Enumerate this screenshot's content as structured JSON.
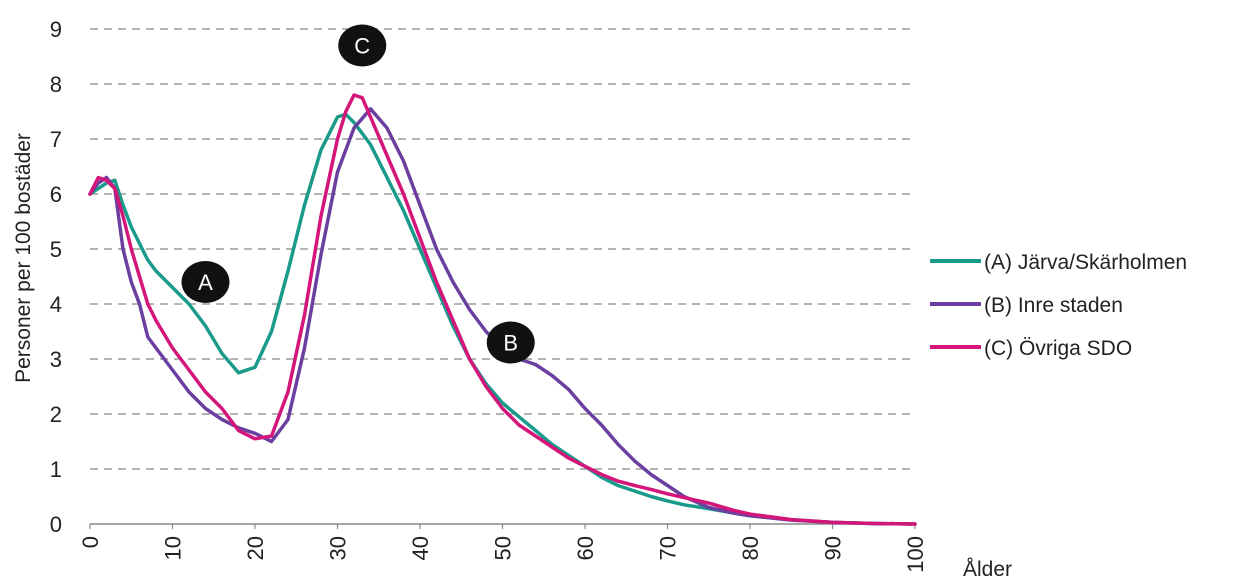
{
  "chart_data": {
    "type": "line",
    "xlabel": "Ålder",
    "ylabel": "Personer per 100 bostäder",
    "xlim": [
      0,
      100
    ],
    "ylim": [
      0,
      9
    ],
    "x_ticks": [
      0,
      10,
      20,
      30,
      40,
      50,
      60,
      70,
      80,
      90,
      100
    ],
    "y_ticks": [
      0,
      1,
      2,
      3,
      4,
      5,
      6,
      7,
      8,
      9
    ],
    "grid": true,
    "legend_position": "right",
    "series": [
      {
        "name": "(A) Järva/Skärholmen",
        "color": "#1a9a8a",
        "points": [
          [
            0,
            6.0
          ],
          [
            1,
            6.1
          ],
          [
            2,
            6.2
          ],
          [
            3,
            6.25
          ],
          [
            4,
            5.8
          ],
          [
            5,
            5.4
          ],
          [
            6,
            5.1
          ],
          [
            7,
            4.8
          ],
          [
            8,
            4.6
          ],
          [
            10,
            4.3
          ],
          [
            12,
            4.0
          ],
          [
            14,
            3.6
          ],
          [
            16,
            3.1
          ],
          [
            18,
            2.75
          ],
          [
            20,
            2.85
          ],
          [
            22,
            3.5
          ],
          [
            24,
            4.6
          ],
          [
            26,
            5.8
          ],
          [
            28,
            6.8
          ],
          [
            30,
            7.4
          ],
          [
            31,
            7.45
          ],
          [
            32,
            7.3
          ],
          [
            34,
            6.9
          ],
          [
            36,
            6.3
          ],
          [
            38,
            5.7
          ],
          [
            40,
            5.0
          ],
          [
            42,
            4.3
          ],
          [
            44,
            3.6
          ],
          [
            46,
            3.0
          ],
          [
            48,
            2.55
          ],
          [
            50,
            2.2
          ],
          [
            52,
            1.95
          ],
          [
            54,
            1.7
          ],
          [
            56,
            1.45
          ],
          [
            58,
            1.25
          ],
          [
            60,
            1.05
          ],
          [
            62,
            0.85
          ],
          [
            64,
            0.7
          ],
          [
            66,
            0.6
          ],
          [
            68,
            0.5
          ],
          [
            70,
            0.42
          ],
          [
            72,
            0.35
          ],
          [
            75,
            0.28
          ],
          [
            78,
            0.2
          ],
          [
            80,
            0.15
          ],
          [
            85,
            0.08
          ],
          [
            90,
            0.03
          ],
          [
            95,
            0.01
          ],
          [
            100,
            0.0
          ]
        ]
      },
      {
        "name": "(B) Inre staden",
        "color": "#6b3fa0",
        "points": [
          [
            0,
            6.0
          ],
          [
            1,
            6.2
          ],
          [
            2,
            6.3
          ],
          [
            3,
            6.1
          ],
          [
            4,
            5.0
          ],
          [
            5,
            4.4
          ],
          [
            6,
            4.0
          ],
          [
            7,
            3.4
          ],
          [
            8,
            3.2
          ],
          [
            10,
            2.8
          ],
          [
            12,
            2.4
          ],
          [
            14,
            2.1
          ],
          [
            16,
            1.9
          ],
          [
            18,
            1.75
          ],
          [
            20,
            1.65
          ],
          [
            22,
            1.5
          ],
          [
            24,
            1.9
          ],
          [
            26,
            3.2
          ],
          [
            28,
            4.9
          ],
          [
            30,
            6.4
          ],
          [
            32,
            7.2
          ],
          [
            34,
            7.55
          ],
          [
            36,
            7.2
          ],
          [
            38,
            6.6
          ],
          [
            40,
            5.8
          ],
          [
            42,
            5.0
          ],
          [
            44,
            4.4
          ],
          [
            46,
            3.9
          ],
          [
            48,
            3.5
          ],
          [
            50,
            3.2
          ],
          [
            52,
            3.0
          ],
          [
            54,
            2.9
          ],
          [
            56,
            2.7
          ],
          [
            58,
            2.45
          ],
          [
            60,
            2.1
          ],
          [
            62,
            1.8
          ],
          [
            64,
            1.45
          ],
          [
            66,
            1.15
          ],
          [
            68,
            0.9
          ],
          [
            70,
            0.7
          ],
          [
            72,
            0.5
          ],
          [
            75,
            0.3
          ],
          [
            78,
            0.2
          ],
          [
            80,
            0.15
          ],
          [
            85,
            0.07
          ],
          [
            90,
            0.03
          ],
          [
            95,
            0.01
          ],
          [
            100,
            0.0
          ]
        ]
      },
      {
        "name": "(C) Övriga SDO",
        "color": "#d4157a",
        "points": [
          [
            0,
            6.0
          ],
          [
            1,
            6.3
          ],
          [
            2,
            6.25
          ],
          [
            3,
            6.1
          ],
          [
            4,
            5.6
          ],
          [
            5,
            5.0
          ],
          [
            6,
            4.5
          ],
          [
            7,
            4.0
          ],
          [
            8,
            3.7
          ],
          [
            10,
            3.2
          ],
          [
            12,
            2.8
          ],
          [
            14,
            2.4
          ],
          [
            16,
            2.1
          ],
          [
            18,
            1.7
          ],
          [
            20,
            1.55
          ],
          [
            22,
            1.6
          ],
          [
            24,
            2.4
          ],
          [
            26,
            3.8
          ],
          [
            28,
            5.6
          ],
          [
            30,
            7.0
          ],
          [
            31,
            7.5
          ],
          [
            32,
            7.8
          ],
          [
            33,
            7.75
          ],
          [
            34,
            7.4
          ],
          [
            36,
            6.7
          ],
          [
            38,
            6.0
          ],
          [
            40,
            5.2
          ],
          [
            42,
            4.4
          ],
          [
            44,
            3.7
          ],
          [
            46,
            3.0
          ],
          [
            48,
            2.5
          ],
          [
            50,
            2.1
          ],
          [
            52,
            1.8
          ],
          [
            54,
            1.6
          ],
          [
            56,
            1.4
          ],
          [
            58,
            1.2
          ],
          [
            60,
            1.05
          ],
          [
            62,
            0.9
          ],
          [
            64,
            0.78
          ],
          [
            66,
            0.7
          ],
          [
            68,
            0.63
          ],
          [
            70,
            0.55
          ],
          [
            72,
            0.48
          ],
          [
            75,
            0.38
          ],
          [
            78,
            0.25
          ],
          [
            80,
            0.18
          ],
          [
            85,
            0.08
          ],
          [
            90,
            0.03
          ],
          [
            95,
            0.01
          ],
          [
            100,
            0.0
          ]
        ]
      }
    ],
    "annotations": [
      {
        "text": "A",
        "x": 14,
        "y": 4.4
      },
      {
        "text": "B",
        "x": 51,
        "y": 3.3
      },
      {
        "text": "C",
        "x": 33,
        "y": 8.7
      }
    ]
  }
}
